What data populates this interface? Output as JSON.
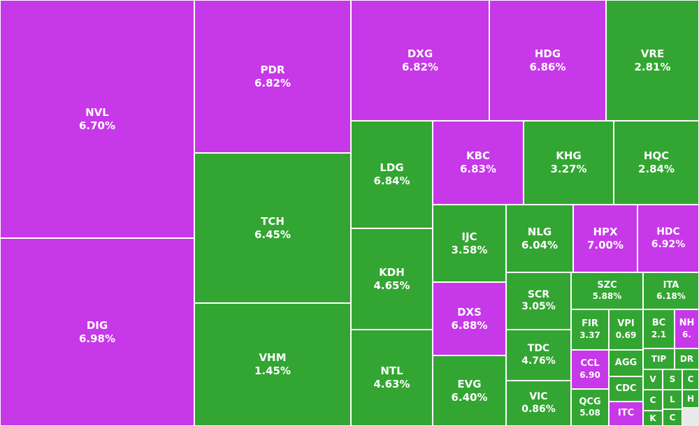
{
  "colors": {
    "up": "#33a532",
    "ceiling": "#c738e8"
  },
  "chart_data": {
    "type": "treemap",
    "cells": [
      {
        "sym": "NVL",
        "pct": "6.70%",
        "status": "ceiling"
      },
      {
        "sym": "DIG",
        "pct": "6.98%",
        "status": "ceiling"
      },
      {
        "sym": "PDR",
        "pct": "6.82%",
        "status": "ceiling"
      },
      {
        "sym": "TCH",
        "pct": "6.45%",
        "status": "up"
      },
      {
        "sym": "VHM",
        "pct": "1.45%",
        "status": "up"
      },
      {
        "sym": "DXG",
        "pct": "6.82%",
        "status": "ceiling"
      },
      {
        "sym": "HDG",
        "pct": "6.86%",
        "status": "ceiling"
      },
      {
        "sym": "VRE",
        "pct": "2.81%",
        "status": "up"
      },
      {
        "sym": "LDG",
        "pct": "6.84%",
        "status": "up"
      },
      {
        "sym": "KDH",
        "pct": "4.65%",
        "status": "up"
      },
      {
        "sym": "NTL",
        "pct": "4.63%",
        "status": "up"
      },
      {
        "sym": "KBC",
        "pct": "6.83%",
        "status": "ceiling"
      },
      {
        "sym": "KHG",
        "pct": "3.27%",
        "status": "up"
      },
      {
        "sym": "HQC",
        "pct": "2.84%",
        "status": "up"
      },
      {
        "sym": "IJC",
        "pct": "3.58%",
        "status": "up"
      },
      {
        "sym": "DXS",
        "pct": "6.88%",
        "status": "ceiling"
      },
      {
        "sym": "EVG",
        "pct": "6.40%",
        "status": "up"
      },
      {
        "sym": "NLG",
        "pct": "6.04%",
        "status": "up"
      },
      {
        "sym": "HPX",
        "pct": "7.00%",
        "status": "ceiling"
      },
      {
        "sym": "HDC",
        "pct": "6.92%",
        "status": "ceiling"
      },
      {
        "sym": "SCR",
        "pct": "3.05%",
        "status": "up"
      },
      {
        "sym": "TDC",
        "pct": "4.76%",
        "status": "up"
      },
      {
        "sym": "VIC",
        "pct": "0.86%",
        "status": "up"
      },
      {
        "sym": "SZC",
        "pct": "5.88%",
        "status": "up"
      },
      {
        "sym": "ITA",
        "pct": "6.18%",
        "status": "up"
      },
      {
        "sym": "FIR",
        "pct": "3.37",
        "status": "up"
      },
      {
        "sym": "VPI",
        "pct": "0.69",
        "status": "up"
      },
      {
        "sym": "BC",
        "pct": "2.1",
        "status": "up"
      },
      {
        "sym": "NH",
        "pct": "6.",
        "status": "ceiling"
      },
      {
        "sym": "CCL",
        "pct": "6.90",
        "status": "ceiling"
      },
      {
        "sym": "AGG",
        "pct": "",
        "status": "up"
      },
      {
        "sym": "TIP",
        "pct": "",
        "status": "up"
      },
      {
        "sym": "DR",
        "pct": "",
        "status": "up"
      },
      {
        "sym": "CDC",
        "pct": "",
        "status": "up"
      },
      {
        "sym": "V",
        "pct": "",
        "status": "up"
      },
      {
        "sym": "S",
        "pct": "",
        "status": "up"
      },
      {
        "sym": "C",
        "pct": "",
        "status": "up"
      },
      {
        "sym": "QCG",
        "pct": "5.08",
        "status": "up"
      },
      {
        "sym": "ITC",
        "pct": "",
        "status": "ceiling"
      },
      {
        "sym": "C",
        "pct": "",
        "status": "up"
      },
      {
        "sym": "L",
        "pct": "",
        "status": "up"
      },
      {
        "sym": "H",
        "pct": "",
        "status": "up"
      },
      {
        "sym": "K",
        "pct": "",
        "status": "up"
      },
      {
        "sym": "C",
        "pct": "",
        "status": "up"
      }
    ]
  }
}
